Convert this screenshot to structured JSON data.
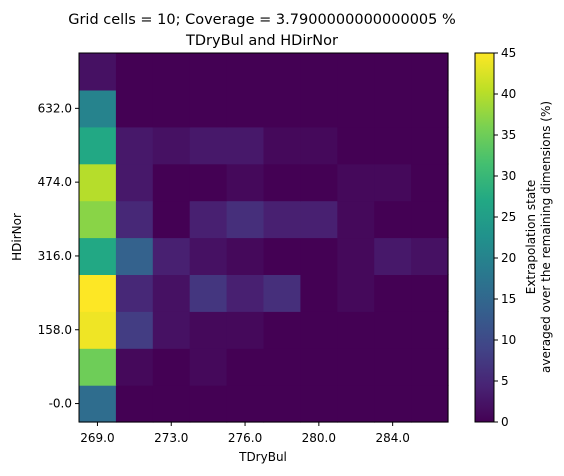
{
  "chart_data": {
    "type": "heatmap",
    "title_line1": "Grid cells = 10; Coverage = 3.7900000000000005 %",
    "title_line2": "TDryBul and HDirNor",
    "xlabel": "TDryBul",
    "ylabel": "HDirNor",
    "x_tick_labels": [
      "269.0",
      "273.0",
      "276.0",
      "280.0",
      "284.0"
    ],
    "y_tick_labels": [
      "-0.0",
      "158.0",
      "316.0",
      "474.0",
      "632.0"
    ],
    "colorbar": {
      "label_line1": "Extrapolation state",
      "label_line2": "averaged over the remaining dimensions (%)",
      "min": 0,
      "max": 45,
      "ticks": [
        0,
        5,
        10,
        15,
        20,
        25,
        30,
        35,
        40,
        45
      ],
      "colormap": "viridis"
    },
    "rows_bottom_to_top": [
      [
        16,
        0,
        0,
        0,
        0,
        0,
        0,
        0,
        0,
        0
      ],
      [
        35,
        1,
        0,
        1,
        0,
        0,
        0,
        0,
        0,
        0
      ],
      [
        44,
        8,
        2,
        1,
        1,
        0,
        0,
        0,
        0,
        0
      ],
      [
        45,
        5,
        2,
        7,
        4,
        6,
        0,
        1,
        0,
        0
      ],
      [
        27,
        14,
        4,
        2,
        1,
        0,
        0,
        1,
        3,
        2
      ],
      [
        37,
        5,
        0,
        4,
        6,
        4,
        4,
        1,
        0,
        0
      ],
      [
        40,
        3,
        0,
        0,
        1,
        0,
        0,
        1,
        1,
        0
      ],
      [
        27,
        3,
        2,
        3,
        3,
        1,
        1,
        0,
        0,
        0
      ],
      [
        20,
        0,
        0,
        0,
        0,
        0,
        0,
        0,
        0,
        0
      ],
      [
        2,
        0,
        0,
        0,
        0,
        0,
        0,
        0,
        0,
        0
      ]
    ]
  }
}
